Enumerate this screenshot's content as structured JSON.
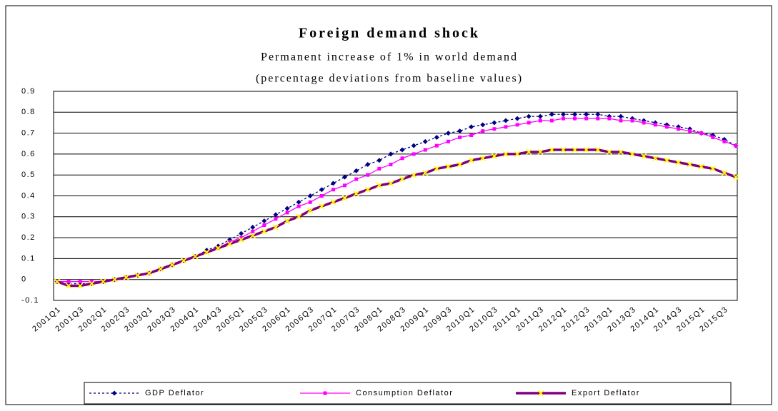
{
  "chart_data": {
    "type": "line",
    "title": "Foreign demand shock",
    "subtitle": "Permanent increase of 1% in world demand",
    "subtitle2": "(percentage deviations from baseline values)",
    "categories": [
      "2001Q1",
      null,
      "2001Q3",
      null,
      "2002Q1",
      null,
      "2002Q3",
      null,
      "2003Q1",
      null,
      "2003Q3",
      null,
      "2004Q1",
      null,
      "2004Q3",
      null,
      "2005Q1",
      null,
      "2005Q3",
      null,
      "2006Q1",
      null,
      "2006Q3",
      null,
      "2007Q1",
      null,
      "2007Q3",
      null,
      "2008Q1",
      null,
      "2008Q3",
      null,
      "2009Q1",
      null,
      "2009Q3",
      null,
      "2010Q1",
      null,
      "2010Q3",
      null,
      "2011Q1",
      null,
      "2011Q3",
      null,
      "2012Q1",
      null,
      "2012Q3",
      null,
      "2013Q1",
      null,
      "2013Q3",
      null,
      "2014Q1",
      null,
      "2014Q3",
      null,
      "2015Q1",
      null,
      "2015Q3",
      null
    ],
    "series": [
      {
        "name": "GDP Deflator",
        "color": "#000080",
        "marker": "diamond",
        "marker_color": "#000080",
        "dash": true,
        "values": [
          -0.01,
          -0.02,
          -0.02,
          -0.02,
          -0.01,
          0.0,
          0.01,
          0.02,
          0.03,
          0.05,
          0.07,
          0.09,
          0.11,
          0.14,
          0.16,
          0.19,
          0.22,
          0.25,
          0.28,
          0.31,
          0.34,
          0.37,
          0.4,
          0.43,
          0.46,
          0.49,
          0.52,
          0.55,
          0.57,
          0.6,
          0.62,
          0.64,
          0.66,
          0.68,
          0.7,
          0.71,
          0.73,
          0.74,
          0.75,
          0.76,
          0.77,
          0.78,
          0.78,
          0.79,
          0.79,
          0.79,
          0.79,
          0.79,
          0.78,
          0.78,
          0.77,
          0.76,
          0.75,
          0.74,
          0.73,
          0.72,
          0.7,
          0.69,
          0.67,
          0.64
        ]
      },
      {
        "name": "Consumption Deflator",
        "color": "#ff00ff",
        "marker": "square",
        "marker_color": "#ff00ff",
        "dash": false,
        "values": [
          -0.01,
          -0.01,
          -0.01,
          -0.01,
          -0.01,
          0.0,
          0.01,
          0.02,
          0.03,
          0.05,
          0.07,
          0.09,
          0.11,
          0.13,
          0.15,
          0.18,
          0.2,
          0.23,
          0.26,
          0.29,
          0.32,
          0.35,
          0.37,
          0.4,
          0.43,
          0.45,
          0.48,
          0.5,
          0.53,
          0.55,
          0.58,
          0.6,
          0.62,
          0.64,
          0.66,
          0.68,
          0.69,
          0.71,
          0.72,
          0.73,
          0.74,
          0.75,
          0.76,
          0.76,
          0.77,
          0.77,
          0.77,
          0.77,
          0.77,
          0.76,
          0.76,
          0.75,
          0.74,
          0.73,
          0.72,
          0.71,
          0.7,
          0.68,
          0.66,
          0.64
        ]
      },
      {
        "name": "Export Deflator",
        "color": "#800080",
        "marker": "x",
        "marker_color": "#ffff00",
        "dash": false,
        "values": [
          -0.01,
          -0.03,
          -0.03,
          -0.02,
          -0.01,
          0.0,
          0.01,
          0.02,
          0.03,
          0.05,
          0.07,
          0.09,
          0.11,
          0.13,
          0.15,
          0.17,
          0.19,
          0.21,
          0.23,
          0.25,
          0.28,
          0.3,
          0.33,
          0.35,
          0.37,
          0.39,
          0.41,
          0.43,
          0.45,
          0.46,
          0.48,
          0.5,
          0.51,
          0.53,
          0.54,
          0.55,
          0.57,
          0.58,
          0.59,
          0.6,
          0.6,
          0.61,
          0.61,
          0.62,
          0.62,
          0.62,
          0.62,
          0.62,
          0.61,
          0.61,
          0.6,
          0.59,
          0.58,
          0.57,
          0.56,
          0.55,
          0.54,
          0.53,
          0.51,
          0.49
        ]
      }
    ],
    "ylim": [
      -0.1,
      0.9
    ],
    "yticks": [
      -0.1,
      0,
      0.1,
      0.2,
      0.3,
      0.4,
      0.5,
      0.6,
      0.7,
      0.8,
      0.9
    ],
    "grid": true,
    "legend": "bottom"
  }
}
